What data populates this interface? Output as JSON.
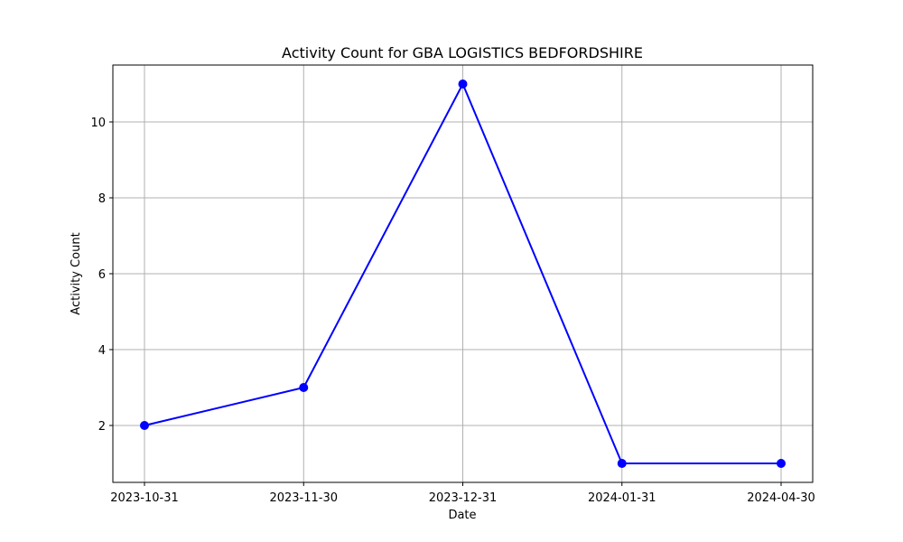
{
  "chart_data": {
    "type": "line",
    "title": "Activity Count for GBA LOGISTICS BEDFORDSHIRE",
    "xlabel": "Date",
    "ylabel": "Activity Count",
    "categories": [
      "2023-10-31",
      "2023-11-30",
      "2023-12-31",
      "2024-01-31",
      "2024-04-30"
    ],
    "series": [
      {
        "values": [
          2,
          3,
          11,
          1,
          1
        ],
        "color": "#0000ff",
        "marker": "circle"
      }
    ],
    "yticks": [
      2,
      4,
      6,
      8,
      10
    ],
    "ylim": [
      0.5,
      11.5
    ],
    "grid": true,
    "legend": "none"
  }
}
